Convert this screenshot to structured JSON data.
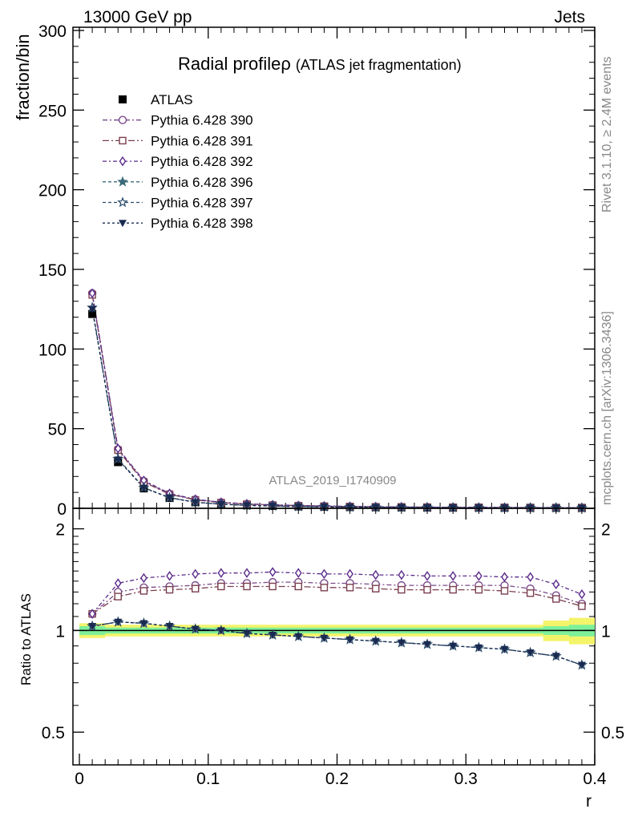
{
  "header": {
    "left": "13000 GeV pp",
    "right": "Jets"
  },
  "side_labels": {
    "rivet": "Rivet 3.1.10, ≥ 2.4M events",
    "mcplots": "mcplots.cern.ch [arXiv:1306.3436]"
  },
  "watermark": "ATLAS_2019_I1740909",
  "chart_data": [
    {
      "type": "line",
      "title_main": "Radial profile",
      "title_symbol": "ρ",
      "title_sub": "(ATLAS jet fragmentation)",
      "xlabel": "r",
      "ylabel": "fraction/bin",
      "xlim": [
        -0.005,
        0.4
      ],
      "ylim": [
        0,
        302
      ],
      "x_ticks": [
        0,
        0.1,
        0.2,
        0.3,
        0.4
      ],
      "x_tick_labels": [
        "0",
        "0.1",
        "0.2",
        "0.3",
        "0.4"
      ],
      "y_ticks": [
        0,
        50,
        100,
        150,
        200,
        250,
        300
      ],
      "y_tick_labels": [
        "0",
        "50",
        "100",
        "150",
        "200",
        "250",
        "300"
      ],
      "legend_position": "top-left",
      "x": [
        0.01,
        0.03,
        0.05,
        0.07,
        0.09,
        0.11,
        0.13,
        0.15,
        0.17,
        0.19,
        0.21,
        0.23,
        0.25,
        0.27,
        0.29,
        0.31,
        0.33,
        0.35,
        0.37,
        0.39
      ],
      "series": [
        {
          "name": "ATLAS",
          "color": "#000000",
          "marker": "filled-square",
          "dash": "none",
          "values": [
            122,
            29,
            12.5,
            6.5,
            3.8,
            2.6,
            1.9,
            1.5,
            1.2,
            1.0,
            0.8,
            0.7,
            0.6,
            0.5,
            0.45,
            0.4,
            0.36,
            0.32,
            0.3,
            0.28
          ]
        },
        {
          "name": "Pythia 6.428 390",
          "color": "#7a4a8a",
          "marker": "open-circle",
          "dash": "6,3,2,3",
          "values": [
            135,
            37,
            17,
            9,
            5.5,
            3.7,
            2.7,
            2.1,
            1.7,
            1.4,
            1.15,
            1.0,
            0.85,
            0.75,
            0.65,
            0.58,
            0.52,
            0.47,
            0.42,
            0.38
          ]
        },
        {
          "name": "Pythia 6.428 391",
          "color": "#7a3e4e",
          "marker": "open-square",
          "dash": "8,3,2,3",
          "values": [
            134,
            36.5,
            16.5,
            8.8,
            5.3,
            3.6,
            2.6,
            2.0,
            1.65,
            1.35,
            1.1,
            0.95,
            0.82,
            0.72,
            0.63,
            0.56,
            0.5,
            0.45,
            0.4,
            0.36
          ]
        },
        {
          "name": "Pythia 6.428 392",
          "color": "#5a2a8a",
          "marker": "open-diamond",
          "dash": "5,3,2,3",
          "values": [
            135,
            37.5,
            17.5,
            9.3,
            5.7,
            3.8,
            2.8,
            2.2,
            1.75,
            1.45,
            1.2,
            1.02,
            0.88,
            0.77,
            0.67,
            0.6,
            0.54,
            0.48,
            0.43,
            0.39
          ]
        },
        {
          "name": "Pythia 6.428 396",
          "color": "#3a6a7a",
          "marker": "filled-star",
          "dash": "4,3",
          "values": [
            126,
            31,
            13,
            6.7,
            3.85,
            2.6,
            1.85,
            1.45,
            1.15,
            0.95,
            0.76,
            0.65,
            0.56,
            0.46,
            0.41,
            0.36,
            0.32,
            0.28,
            0.26,
            0.22
          ]
        },
        {
          "name": "Pythia 6.428 397",
          "color": "#2a4a6a",
          "marker": "open-star",
          "dash": "4,3",
          "values": [
            126,
            31,
            13,
            6.7,
            3.85,
            2.6,
            1.85,
            1.45,
            1.15,
            0.95,
            0.76,
            0.65,
            0.56,
            0.46,
            0.41,
            0.36,
            0.32,
            0.28,
            0.26,
            0.22
          ]
        },
        {
          "name": "Pythia 6.428 398",
          "color": "#1a2a50",
          "marker": "filled-triangle-down",
          "dash": "3,3",
          "values": [
            125,
            30.5,
            12.8,
            6.6,
            3.8,
            2.58,
            1.83,
            1.43,
            1.13,
            0.93,
            0.74,
            0.63,
            0.55,
            0.45,
            0.4,
            0.35,
            0.31,
            0.27,
            0.25,
            0.21
          ]
        }
      ]
    },
    {
      "type": "line",
      "xlabel": "r",
      "ylabel": "Ratio to ATLAS",
      "scale": "log",
      "xlim": [
        -0.005,
        0.4
      ],
      "ylim": [
        0.4,
        2.3
      ],
      "y_ticks": [
        0.5,
        1,
        2
      ],
      "y_tick_labels": [
        "0.5",
        "1",
        "2"
      ],
      "x": [
        0.01,
        0.03,
        0.05,
        0.07,
        0.09,
        0.11,
        0.13,
        0.15,
        0.17,
        0.19,
        0.21,
        0.23,
        0.25,
        0.27,
        0.29,
        0.31,
        0.33,
        0.35,
        0.37,
        0.39
      ],
      "band_inner": [
        0.03,
        0.02,
        0.02,
        0.02,
        0.02,
        0.02,
        0.02,
        0.02,
        0.02,
        0.02,
        0.02,
        0.02,
        0.02,
        0.02,
        0.02,
        0.02,
        0.02,
        0.02,
        0.03,
        0.04
      ],
      "band_outer": [
        0.05,
        0.04,
        0.04,
        0.04,
        0.04,
        0.04,
        0.04,
        0.04,
        0.04,
        0.04,
        0.04,
        0.04,
        0.04,
        0.04,
        0.04,
        0.04,
        0.04,
        0.04,
        0.07,
        0.09
      ],
      "band_colors": {
        "outer": "#f4f46a",
        "inner": "#7ef09a"
      },
      "series": [
        {
          "name": "Pythia 6.428 390",
          "values": [
            1.12,
            1.3,
            1.34,
            1.35,
            1.36,
            1.38,
            1.38,
            1.39,
            1.39,
            1.38,
            1.38,
            1.37,
            1.36,
            1.36,
            1.36,
            1.36,
            1.36,
            1.33,
            1.27,
            1.2
          ]
        },
        {
          "name": "Pythia 6.428 391",
          "values": [
            1.12,
            1.26,
            1.31,
            1.32,
            1.33,
            1.35,
            1.35,
            1.35,
            1.35,
            1.34,
            1.34,
            1.33,
            1.32,
            1.32,
            1.32,
            1.32,
            1.31,
            1.29,
            1.24,
            1.18
          ]
        },
        {
          "name": "Pythia 6.428 392",
          "values": [
            1.12,
            1.38,
            1.43,
            1.45,
            1.47,
            1.48,
            1.48,
            1.49,
            1.48,
            1.47,
            1.47,
            1.46,
            1.46,
            1.45,
            1.45,
            1.45,
            1.44,
            1.44,
            1.37,
            1.28
          ]
        },
        {
          "name": "Pythia 6.428 396",
          "values": [
            1.03,
            1.06,
            1.05,
            1.03,
            1.01,
            1.0,
            0.98,
            0.97,
            0.96,
            0.95,
            0.94,
            0.93,
            0.92,
            0.91,
            0.9,
            0.89,
            0.88,
            0.86,
            0.84,
            0.79
          ]
        },
        {
          "name": "Pythia 6.428 397",
          "values": [
            1.03,
            1.06,
            1.05,
            1.03,
            1.01,
            1.0,
            0.98,
            0.97,
            0.96,
            0.95,
            0.94,
            0.93,
            0.92,
            0.91,
            0.9,
            0.89,
            0.88,
            0.86,
            0.84,
            0.79
          ]
        },
        {
          "name": "Pythia 6.428 398",
          "values": [
            1.03,
            1.06,
            1.05,
            1.03,
            1.01,
            1.0,
            0.98,
            0.97,
            0.96,
            0.95,
            0.94,
            0.93,
            0.92,
            0.91,
            0.9,
            0.89,
            0.88,
            0.86,
            0.84,
            0.79
          ]
        }
      ]
    }
  ]
}
